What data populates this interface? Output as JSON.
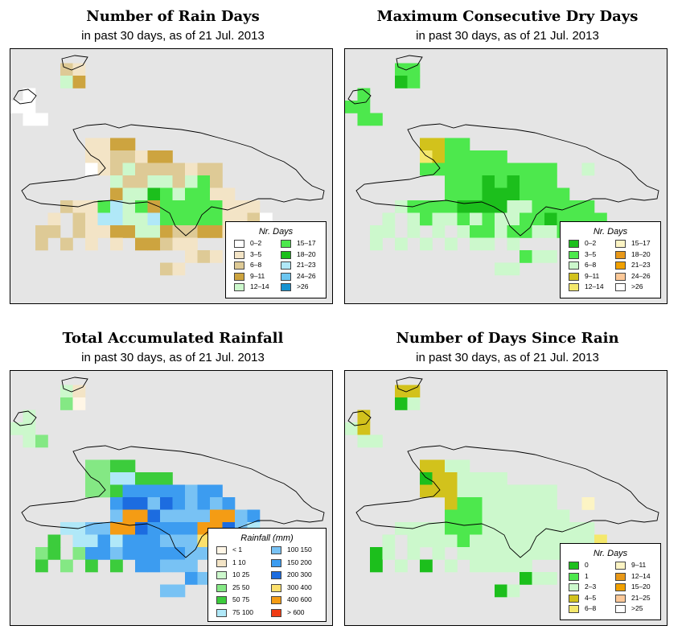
{
  "panels": [
    {
      "title": "Number of Rain Days",
      "subtitle": "in past 30 days, as of  21 Jul. 2013",
      "legend_title": "Nr. Days",
      "legend_type": "days",
      "legend": [
        {
          "label": "0–2",
          "color": "#ffffff"
        },
        {
          "label": "3–5",
          "color": "#f3e4c6"
        },
        {
          "label": "6–8",
          "color": "#deca96"
        },
        {
          "label": "9–11",
          "color": "#cda43f"
        },
        {
          "label": "12–14",
          "color": "#ccf8cc"
        },
        {
          "label": "15–17",
          "color": "#4de84d"
        },
        {
          "label": "18–20",
          "color": "#1cbf1c"
        },
        {
          "label": "21–23",
          "color": "#b0e8f8"
        },
        {
          "label": "24–26",
          "color": "#6cc6f0"
        },
        {
          "label": ">26",
          "color": "#1893d0"
        }
      ],
      "grid": [
        "..........................",
        "....32....................",
        "....54....................",
        ".1........................",
        "11........................",
        ".11.......................",
        "........................",
        "......2244................",
        "......2233244.............",
        "......12353333233.........",
        "........533553563.........",
        "........4557656622........",
        "....3226856466666222......",
        "...2.3288558666662231.....",
        "..33.32244554334422.31....",
        "..3.3.2.2.44322...........",
        "..............232.........",
        "............32............"
      ]
    },
    {
      "title": "Maximum Consecutive Dry Days",
      "subtitle": "in past 30 days, as of  21 Jul. 2013",
      "legend_title": "Nr. Days",
      "legend_type": "days",
      "legend": [
        {
          "label": "0–2",
          "color": "#1cbf1c"
        },
        {
          "label": "3–5",
          "color": "#4de84d"
        },
        {
          "label": "6–8",
          "color": "#ccf8cc"
        },
        {
          "label": "9–11",
          "color": "#d2c21c"
        },
        {
          "label": "12–14",
          "color": "#f4e86c"
        },
        {
          "label": "15–17",
          "color": "#fcf4c4"
        },
        {
          "label": "18–20",
          "color": "#e89818"
        },
        {
          "label": "21–23",
          "color": "#f0a000"
        },
        {
          "label": "24–26",
          "color": "#fcc898"
        },
        {
          "label": ">26",
          "color": "#ffffff"
        }
      ],
      "grid": [
        "..........................",
        "....22....................",
        "....12....................",
        ".2........................",
        "22........................",
        ".22.......................",
        "..........................",
        "......4422................",
        "......5422222.............",
        "......22222222222..3......",
        "........222121222.........",
        "........2221112222........",
        "....3222211113322222......",
        "...3.3233232332212222.....",
        "..33.3.3.322322332.34.....",
        "..3.3.3.3.33.3............",
        "..............233.........",
        "............33............"
      ]
    },
    {
      "title": "Total Accumulated Rainfall",
      "subtitle": "in past 30 days, as of  21 Jul. 2013",
      "legend_title": "Rainfall (mm)",
      "legend_type": "rain",
      "legend": [
        {
          "label": "< 1",
          "color": "#fff6e6"
        },
        {
          "label": "1    10",
          "color": "#f3e4c6"
        },
        {
          "label": "10    25",
          "color": "#ccf8cc"
        },
        {
          "label": "25    50",
          "color": "#84e884"
        },
        {
          "label": "50    75",
          "color": "#3ccc3c"
        },
        {
          "label": "75    100",
          "color": "#b0e8f8"
        },
        {
          "label": "100    150",
          "color": "#78c2f4"
        },
        {
          "label": "150    200",
          "color": "#3c9cf0"
        },
        {
          "label": "200    300",
          "color": "#1c6ce0"
        },
        {
          "label": "300    400",
          "color": "#fce06c"
        },
        {
          "label": "400    600",
          "color": "#f49c14"
        },
        {
          "label": "> 600",
          "color": "#f03c14"
        }
      ],
      "grid": [
        "..........................",
        "....32....................",
        "....41....................",
        ".3........................",
        "33........................",
        ".34.......................",
        "..........................",
        "......4455................",
        "......4466555.............",
        "......44588888788.........",
        "........8997987878........",
        "........7bb97777bb78......",
        "....6677bb98888bb976......",
        "...5.6686888777a8a755.....",
        "..45.48878888877877.55....",
        "..5.4.5.5.88777...........",
        "..............878.........",
        "............77............"
      ]
    },
    {
      "title": "Number of Days Since Rain",
      "subtitle": "in past 30 days, as of  21 Jul. 2013",
      "legend_title": "Nr. Days",
      "legend_type": "days",
      "legend": [
        {
          "label": "0",
          "color": "#1cbf1c"
        },
        {
          "label": "1",
          "color": "#4de84d"
        },
        {
          "label": "2–3",
          "color": "#ccf8cc"
        },
        {
          "label": "4–5",
          "color": "#d2c21c"
        },
        {
          "label": "6–8",
          "color": "#f4e86c"
        },
        {
          "label": "9–11",
          "color": "#fcf4c4"
        },
        {
          "label": "12–14",
          "color": "#e89818"
        },
        {
          "label": "15–20",
          "color": "#f0a000"
        },
        {
          "label": "21–25",
          "color": "#fcc898"
        },
        {
          "label": ">25",
          "color": "#ffffff"
        }
      ],
      "grid": [
        "..........................",
        "....44....................",
        "....13....................",
        ".4........................",
        "34........................",
        ".33.......................",
        "..........................",
        "......4433................",
        "......1443333.............",
        "......44433333333.........",
        "........422333333..6......",
        "........2223333333........",
        "....3333222333333333......",
        "...3.3333233333333335.....",
        "..13.3.3.333333333.31.....",
        "..1.3.1.3.33333...........",
        "..............133.........",
        "............13............"
      ]
    }
  ]
}
